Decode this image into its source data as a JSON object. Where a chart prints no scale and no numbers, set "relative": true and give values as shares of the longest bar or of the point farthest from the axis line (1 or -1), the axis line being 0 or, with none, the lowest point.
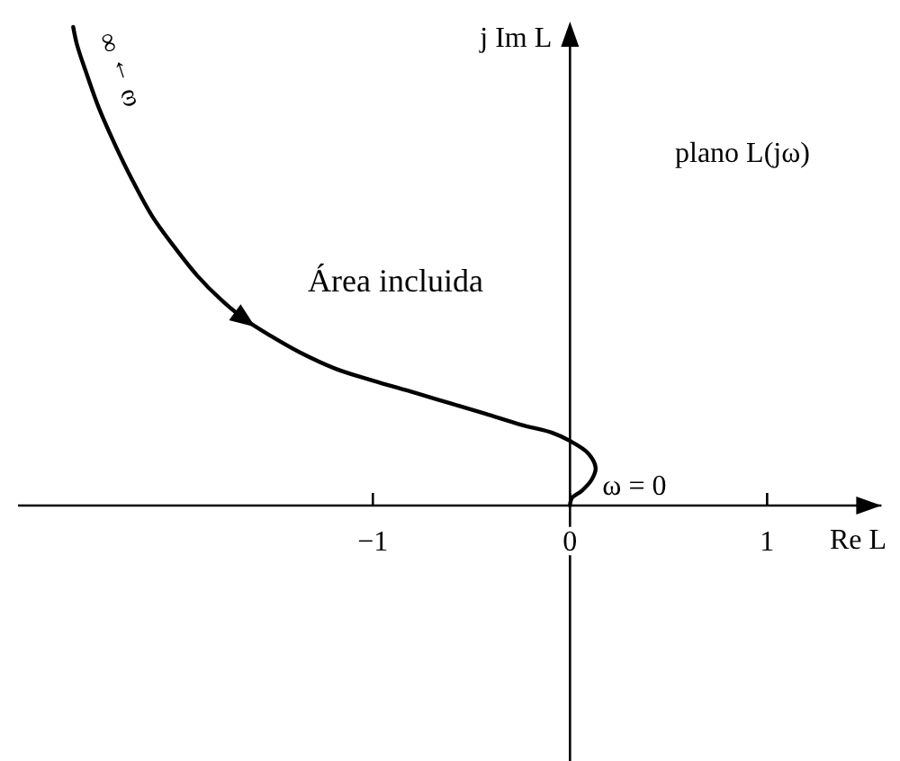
{
  "chart_data": {
    "type": "line",
    "xlabel": "Re L",
    "ylabel": "j Im L",
    "relative": true,
    "xlim": [
      -2.8,
      1.58
    ],
    "xticks": [
      {
        "value": -1,
        "label": "−1"
      },
      0,
      1
    ],
    "x": [
      -2.52,
      -2.5,
      -2.45,
      -2.39,
      -2.31,
      -2.22,
      -2.12,
      -2.01,
      -1.89,
      -1.77,
      -1.65,
      -1.52,
      -1.37,
      -1.19,
      -1.0,
      -0.79,
      -0.61,
      -0.43,
      -0.25,
      -0.09,
      0.0,
      0.09,
      0.13,
      0.11,
      0.06,
      0.01,
      0.0
    ],
    "values": [
      1.0,
      0.962,
      0.9,
      0.831,
      0.756,
      0.68,
      0.605,
      0.542,
      0.48,
      0.43,
      0.389,
      0.355,
      0.32,
      0.286,
      0.261,
      0.236,
      0.214,
      0.192,
      0.169,
      0.152,
      0.135,
      0.11,
      0.079,
      0.054,
      0.031,
      0.016,
      0
    ],
    "color": "#000000",
    "annotations": [
      {
        "text": "ω → ∞",
        "x": -2.52,
        "y": 1.0
      },
      "plano L(jω)",
      "Área incluida",
      {
        "text": "ω = 0",
        "x": 0,
        "y": 0
      }
    ]
  }
}
